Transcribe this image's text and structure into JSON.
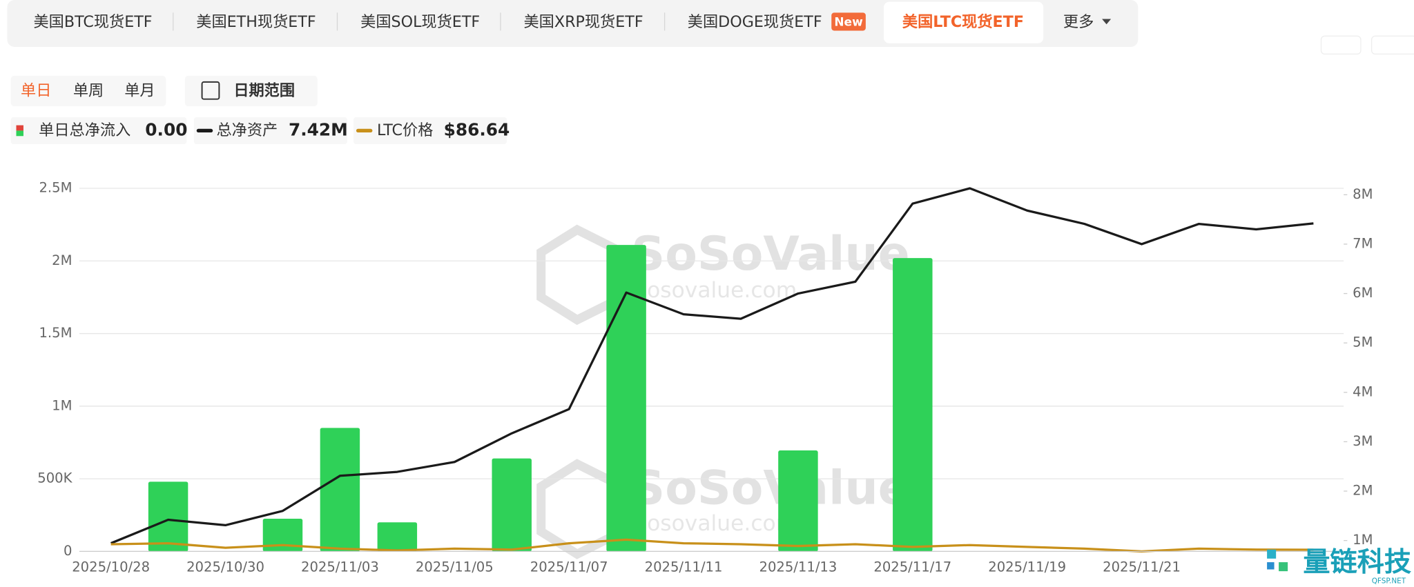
{
  "ui": {
    "tabs": [
      "美国BTC现货ETF",
      "美国ETH现货ETF",
      "美国SOL现货ETF",
      "美国XRP现货ETF",
      "美国DOGE现货ETF",
      "美国LTC现货ETF",
      "更多"
    ],
    "new_badge": "New",
    "periods": [
      "单日",
      "单周",
      "单月"
    ],
    "date_range": "日期范围",
    "watermark": "SoSoValue",
    "watermark_url": "sosovalue.com",
    "logo": "量链科技",
    "logo_sub": "QFSP.NET"
  },
  "chart_data": {
    "type": "bar",
    "categories": [
      "2025/10/28",
      null,
      "2025/10/30",
      null,
      "2025/11/03",
      null,
      "2025/11/05",
      null,
      "2025/11/07",
      null,
      "2025/11/11",
      null,
      "2025/11/13",
      null,
      "2025/11/17",
      null,
      "2025/11/19",
      null,
      "2025/11/21",
      null,
      null,
      null
    ],
    "series": [
      {
        "name": "单日总净流入",
        "type": "bar",
        "color": "#2fd158",
        "current_label": "0.00",
        "values": [
          0,
          480000,
          0,
          225000,
          850000,
          200000,
          0,
          640000,
          0,
          2110000,
          0,
          0,
          695000,
          0,
          2020000,
          0,
          0,
          0,
          0,
          0,
          0,
          0
        ]
      },
      {
        "name": "总净资产",
        "type": "line",
        "axis": "y2",
        "color": "#1a1a1a",
        "current_label": "7.42M",
        "values": [
          945000,
          1420000,
          1310000,
          1600000,
          2310000,
          2390000,
          2590000,
          3170000,
          3660000,
          6020000,
          5580000,
          5490000,
          6000000,
          6240000,
          7820000,
          8130000,
          7680000,
          7410000,
          7000000,
          7410000,
          7300000,
          7420000
        ]
      },
      {
        "name": "LTC价格",
        "type": "line",
        "axis": "y3",
        "color": "#c8901a",
        "current_label": "$86.64",
        "values": [
          95.6,
          97.1,
          89.8,
          94.2,
          88.4,
          85.5,
          88.4,
          86.9,
          97.1,
          102.9,
          97.1,
          95.6,
          92.7,
          95.6,
          91.3,
          94.2,
          91.3,
          88.4,
          84,
          88.4,
          86.9,
          86.64
        ]
      }
    ],
    "ylim": [
      0,
      2500000
    ],
    "yticks": [
      0,
      {
        "value": 500000,
        "label": "500K"
      },
      {
        "value": 1000000,
        "label": "1M"
      },
      {
        "value": 1500000,
        "label": "1.5M"
      },
      {
        "value": 2000000,
        "label": "2M"
      },
      {
        "value": 2500000,
        "label": "2.5M"
      }
    ],
    "y2lim": [
      780000,
      8130000
    ],
    "y2ticks": [
      {
        "value": 1000000,
        "label": "1M"
      },
      {
        "value": 2000000,
        "label": "2M"
      },
      {
        "value": 3000000,
        "label": "3M"
      },
      {
        "value": 4000000,
        "label": "4M"
      },
      {
        "value": 5000000,
        "label": "5M"
      },
      {
        "value": 6000000,
        "label": "6M"
      },
      {
        "value": 7000000,
        "label": "7M"
      },
      {
        "value": 8000000,
        "label": "8M"
      }
    ],
    "y3lim": [
      84,
      670
    ],
    "grid": true
  }
}
